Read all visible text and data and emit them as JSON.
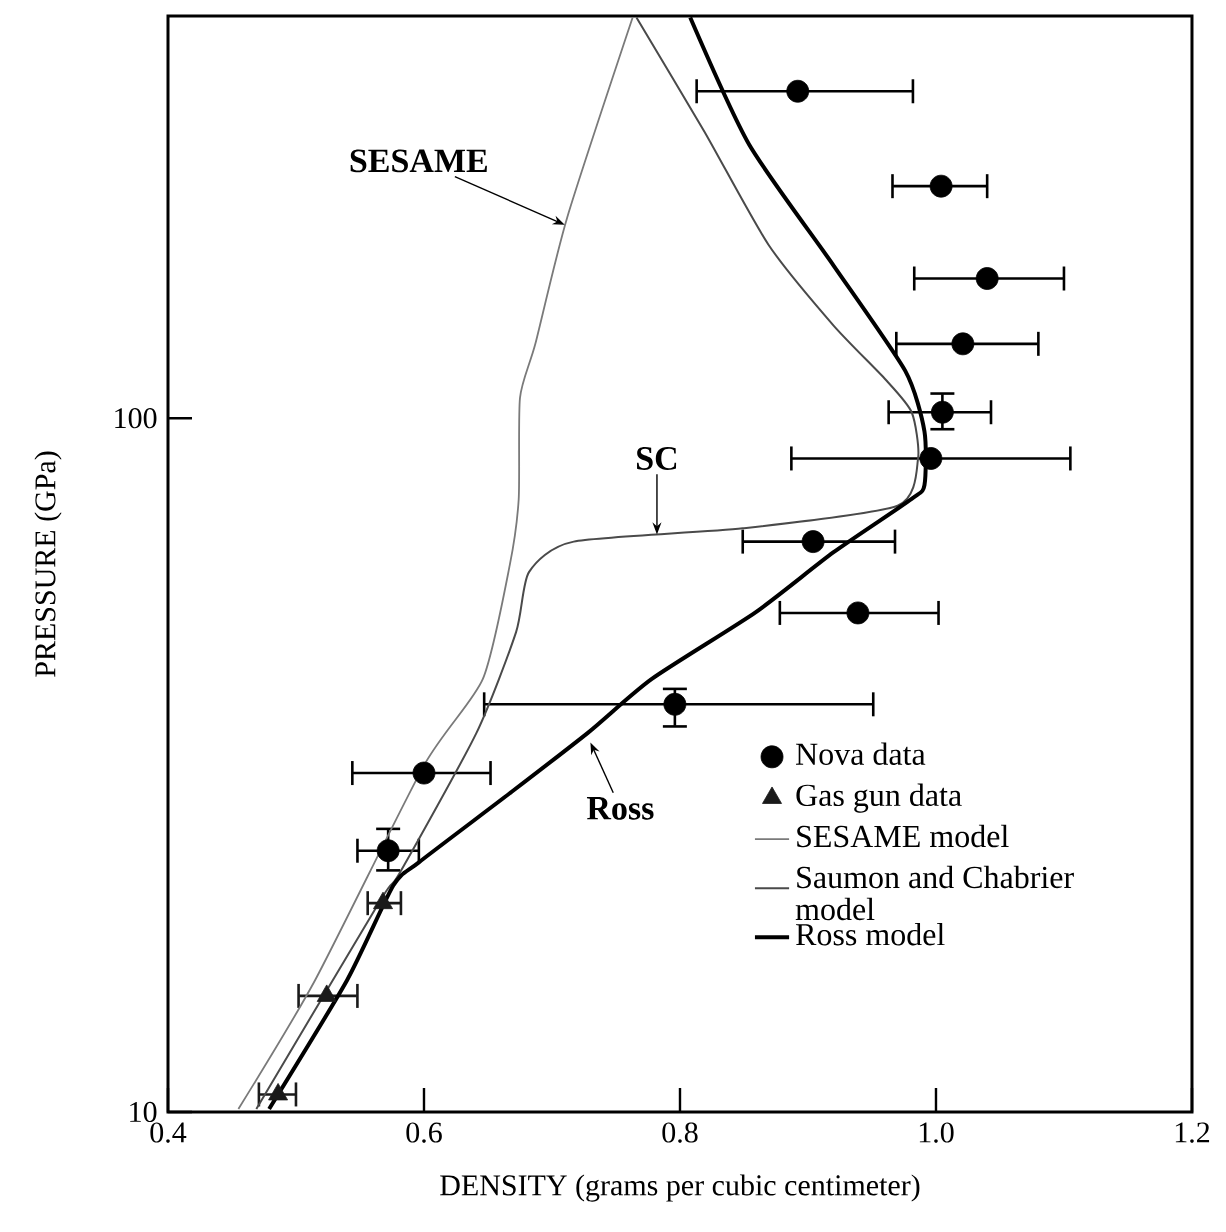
{
  "chart_data": {
    "type": "scatter",
    "xlabel": "DENSITY (grams per cubic centimeter)",
    "ylabel": "PRESSURE (GPa)",
    "xlim": [
      0.4,
      1.2
    ],
    "ylim": [
      10,
      380
    ],
    "xticks": [
      0.4,
      0.6,
      0.8,
      {
        "value": 1.0,
        "label": "1.0"
      },
      1.2
    ],
    "yticks": [
      10,
      100
    ],
    "log": "y",
    "legend": "bottom right",
    "grid": false,
    "series": [
      {
        "name": "Nova data",
        "marker": "circle",
        "color": "#000000",
        "x": [
          0.892,
          1.004,
          1.04,
          1.021,
          1.005,
          0.996,
          0.904,
          0.939,
          0.796,
          0.6,
          0.572
        ],
        "values": [
          296,
          216,
          159,
          128,
          102,
          87.5,
          66.4,
          52.4,
          38.7,
          30.8,
          23.8
        ],
        "xerrors": [
          [
            0.812,
            0.983
          ],
          [
            0.965,
            1.041
          ],
          [
            0.982,
            1.101
          ],
          [
            0.968,
            1.081
          ],
          [
            0.962,
            1.044
          ],
          [
            0.886,
            1.106
          ],
          [
            0.848,
            0.969
          ],
          [
            0.877,
            1.003
          ],
          [
            0.646,
            0.952
          ],
          [
            0.543,
            0.653
          ],
          [
            0.547,
            0.597
          ]
        ],
        "errors": [
          null,
          null,
          null,
          null,
          [
            96,
            109
          ],
          null,
          null,
          null,
          [
            35.8,
            40.9
          ],
          null,
          [
            22.2,
            25.7
          ]
        ]
      },
      {
        "name": "Gas gun data",
        "marker": "triangle",
        "color": "#1a1a1a",
        "x": [
          0.568,
          0.524,
          0.486
        ],
        "values": [
          20.0,
          14.7,
          10.6
        ],
        "xerrors": [
          [
            0.555,
            0.583
          ],
          [
            0.501,
            0.549
          ],
          [
            0.47,
            0.501
          ]
        ]
      },
      {
        "name": "SESAME  model",
        "type": "line",
        "color": "#7a7a7a",
        "x": [
          0.455,
          0.515,
          0.6,
          0.646,
          0.667,
          0.674,
          0.675,
          0.687,
          0.712,
          0.763
        ],
        "values": [
          10.1,
          15.5,
          31.6,
          42.1,
          61.4,
          76.5,
          107,
          128,
          195,
          378
        ]
      },
      {
        "name": "Saumon and Chabrier model",
        "type": "line",
        "color": "#4a4a4a",
        "x": [
          0.469,
          0.566,
          0.581,
          0.641,
          0.672,
          0.682,
          0.717,
          0.849,
          0.97,
          0.986,
          0.981,
          0.96,
          0.92,
          0.869,
          0.819,
          0.766
        ],
        "values": [
          10.1,
          20.2,
          22.1,
          35.2,
          49.2,
          60.0,
          66.4,
          69.4,
          74.8,
          87.5,
          102,
          114,
          136,
          178,
          259,
          378
        ]
      },
      {
        "name": "Ross  model",
        "type": "line",
        "color": "#000000",
        "x": [
          0.479,
          0.54,
          0.576,
          0.596,
          0.667,
          0.728,
          0.778,
          0.859,
          0.92,
          0.981,
          0.991,
          0.991,
          0.976,
          0.92,
          0.854,
          0.808
        ],
        "values": [
          10.1,
          15.5,
          21.2,
          22.9,
          28.8,
          35.2,
          42.1,
          52.5,
          64.1,
          76.5,
          80.1,
          95.7,
          117,
          166,
          248,
          378
        ]
      }
    ],
    "annotations": [
      {
        "text": "SESAME",
        "x": 0.71,
        "y": 190
      },
      {
        "text": "SC",
        "x": 0.782,
        "y": 68
      },
      {
        "text": "Ross",
        "x": 0.73,
        "y": 34.1
      }
    ]
  }
}
